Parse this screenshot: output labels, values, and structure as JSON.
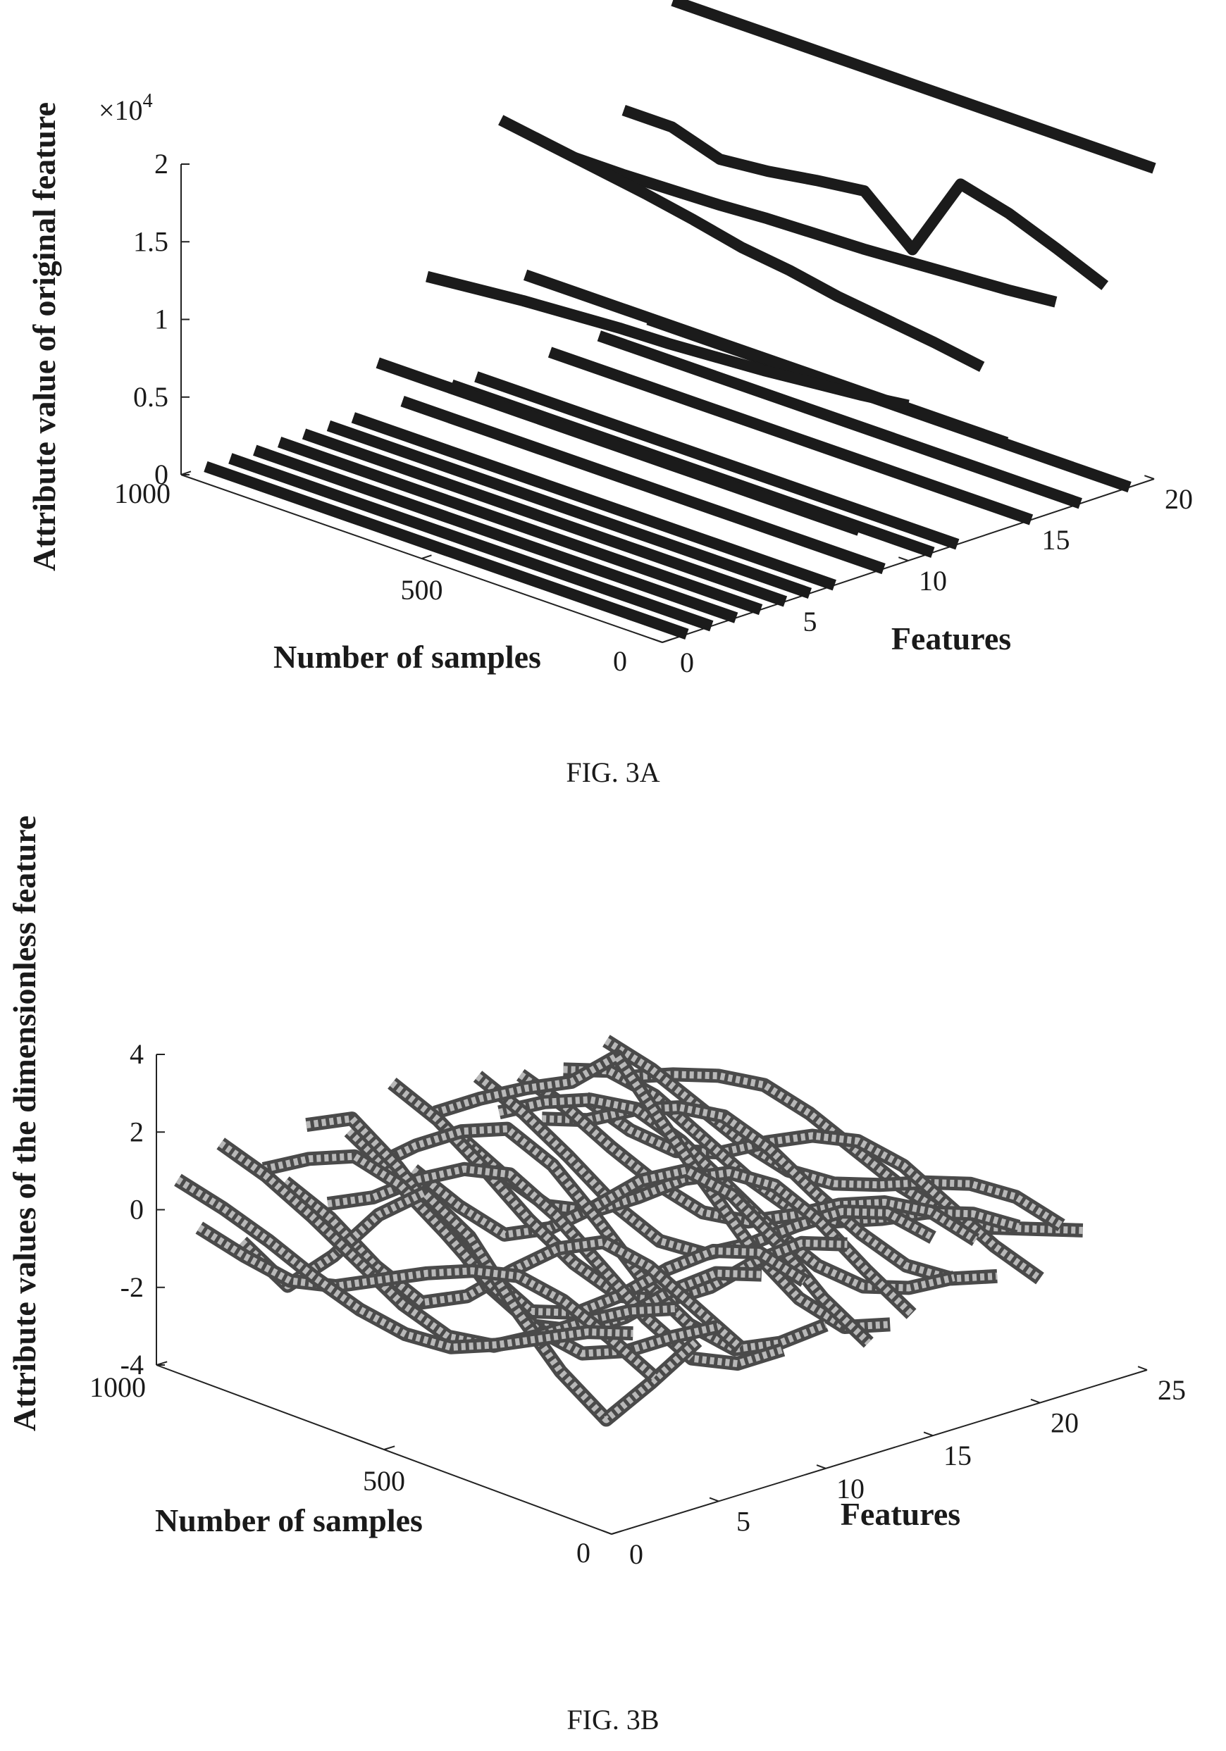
{
  "figures": [
    {
      "caption": "FIG. 3A"
    },
    {
      "caption": "FIG. 3B"
    }
  ],
  "chart_data": [
    {
      "type": "line",
      "render": "3d-ribbon",
      "title": "",
      "zlabel": "Attribute value of original feature",
      "xlabel": "Number of samples",
      "ylabel": "Features",
      "z_multiplier_label": "×10",
      "z_multiplier_exp": "4",
      "x_ticks": [
        "1000",
        "500",
        "0"
      ],
      "y_ticks": [
        "0",
        "5",
        "10",
        "15",
        "20"
      ],
      "z_ticks": [
        "0",
        "0.5",
        "1",
        "1.5",
        "2"
      ],
      "xlim": [
        0,
        1000
      ],
      "ylim": [
        0,
        20
      ],
      "zlim": [
        0,
        20000
      ],
      "series": [
        {
          "feature": 1,
          "z": [
            0,
            0,
            0,
            0,
            0,
            0,
            0,
            0,
            0,
            0,
            0
          ]
        },
        {
          "feature": 2,
          "z": [
            0,
            0,
            0,
            0,
            0,
            0,
            0,
            0,
            0,
            0,
            0
          ]
        },
        {
          "feature": 3,
          "z": [
            0,
            0,
            0,
            0,
            0,
            0,
            0,
            0,
            0,
            0,
            0
          ]
        },
        {
          "feature": 4,
          "z": [
            0,
            0,
            0,
            0,
            0,
            0,
            0,
            0,
            0,
            0,
            0
          ]
        },
        {
          "feature": 5,
          "z": [
            0,
            0,
            0,
            0,
            0,
            0,
            0,
            0,
            0,
            0,
            0
          ]
        },
        {
          "feature": 6,
          "z": [
            0,
            0,
            0,
            0,
            0,
            0,
            0,
            0,
            0,
            0,
            0
          ]
        },
        {
          "feature": 7,
          "z": [
            0,
            0,
            0,
            0,
            0,
            0,
            0,
            0,
            0,
            0,
            0
          ]
        },
        {
          "feature": 8,
          "z": [
            3000,
            3000,
            3000,
            3000,
            3000,
            3000,
            3000,
            3000,
            3000,
            3000,
            3000
          ]
        },
        {
          "feature": 9,
          "z": [
            0,
            0,
            0,
            0,
            0,
            0,
            0,
            0,
            0,
            0,
            0
          ]
        },
        {
          "feature": 10,
          "z": [
            7500,
            7800,
            8100,
            8300,
            8500,
            8600,
            8800,
            9000,
            9300,
            9600,
            10000
          ]
        },
        {
          "feature": 11,
          "z": [
            0,
            0,
            0,
            0,
            0,
            0,
            0,
            0,
            0,
            0,
            0
          ]
        },
        {
          "feature": 12,
          "z": [
            0,
            0,
            0,
            0,
            0,
            0,
            0,
            0,
            0,
            0,
            0
          ]
        },
        {
          "feature": 13,
          "z": [
            16000,
            15500,
            15000,
            14500,
            13900,
            13200,
            12800,
            12200,
            11800,
            11400,
            10900
          ]
        },
        {
          "feature": 14,
          "z": [
            5500,
            5500,
            5500,
            5500,
            5500,
            5500,
            5500,
            5500,
            5500,
            5500,
            5500
          ]
        },
        {
          "feature": 15,
          "z": [
            0,
            0,
            0,
            0,
            0,
            0,
            0,
            0,
            0,
            0,
            0
          ]
        },
        {
          "feature": 16,
          "z": [
            12000,
            12000,
            12100,
            12200,
            12400,
            12500,
            12600,
            12800,
            13000,
            13200,
            13500
          ]
        },
        {
          "feature": 17,
          "z": [
            0,
            0,
            0,
            0,
            0,
            0,
            0,
            0,
            0,
            0,
            0
          ]
        },
        {
          "feature": 18,
          "z": [
            14000,
            14000,
            13000,
            13300,
            13800,
            14200,
            11500,
            16800,
            16000,
            14800,
            13500
          ]
        },
        {
          "feature": 19,
          "z": [
            0,
            0,
            0,
            0,
            0,
            0,
            0,
            0,
            0,
            0,
            0
          ]
        },
        {
          "feature": 20,
          "z": [
            20000,
            20000,
            20000,
            20000,
            20000,
            20000,
            20000,
            20000,
            20000,
            20000,
            20000
          ]
        }
      ]
    },
    {
      "type": "line",
      "render": "3d-ribbon",
      "title": "",
      "zlabel": "Attribute values of the dimensionless feature",
      "xlabel": "Number of samples",
      "ylabel": "Features",
      "x_ticks": [
        "1000",
        "500",
        "0"
      ],
      "y_ticks": [
        "0",
        "5",
        "10",
        "15",
        "20",
        "25"
      ],
      "z_ticks": [
        "-4",
        "-2",
        "0",
        "2",
        "4"
      ],
      "xlim": [
        0,
        1000
      ],
      "ylim": [
        0,
        25
      ],
      "zlim": [
        -4,
        4
      ],
      "series": [
        {
          "feature": 1,
          "z": [
            0.6,
            0.3,
            -0.1,
            -0.6,
            -1.0,
            -1.2,
            -1.1,
            -0.6,
            0.0,
            0.6,
            1.0
          ]
        },
        {
          "feature": 2,
          "z": [
            -0.8,
            -1.1,
            -1.3,
            -1.0,
            -0.4,
            0.2,
            0.7,
            1.0,
            0.8,
            0.3,
            -0.3
          ]
        },
        {
          "feature": 3,
          "z": [
            1.2,
            0.8,
            0.2,
            -0.5,
            -1.2,
            -1.6,
            -1.4,
            -0.7,
            0.1,
            0.8,
            1.3
          ]
        },
        {
          "feature": 4,
          "z": [
            -1.5,
            -2.2,
            -1.0,
            0.5,
            1.5,
            0.8,
            -0.6,
            -1.8,
            -2.6,
            -1.2,
            0.3
          ]
        },
        {
          "feature": 5,
          "z": [
            0.2,
            0.9,
            1.4,
            1.1,
            0.3,
            -0.6,
            -1.3,
            -1.5,
            -1.0,
            -0.2,
            0.5
          ]
        },
        {
          "feature": 6,
          "z": [
            -0.3,
            -0.8,
            -1.6,
            -2.1,
            -1.5,
            -0.4,
            0.6,
            1.2,
            1.0,
            0.4,
            -0.2
          ]
        },
        {
          "feature": 7,
          "z": [
            1.0,
            1.6,
            0.8,
            -0.3,
            -1.4,
            -2.0,
            -1.7,
            -0.9,
            0.2,
            1.1,
            1.5
          ]
        },
        {
          "feature": 8,
          "z": [
            -1.2,
            -0.6,
            0.3,
            1.0,
            1.3,
            0.7,
            -0.2,
            -1.1,
            -1.7,
            -1.4,
            -0.6
          ]
        },
        {
          "feature": 9,
          "z": [
            0.5,
            -0.2,
            -1.0,
            -1.8,
            -2.4,
            -2.0,
            -1.1,
            0.0,
            0.9,
            1.3,
            1.0
          ]
        },
        {
          "feature": 10,
          "z": [
            -0.6,
            0.4,
            1.2,
            1.7,
            1.2,
            0.2,
            -0.9,
            -1.6,
            -1.8,
            -1.2,
            -0.3
          ]
        },
        {
          "feature": 11,
          "z": [
            1.4,
            0.9,
            0.1,
            -0.8,
            -1.5,
            -1.9,
            -1.6,
            -0.8,
            0.3,
            1.2,
            1.6
          ]
        },
        {
          "feature": 12,
          "z": [
            -1.0,
            -1.5,
            -1.8,
            -1.2,
            -0.2,
            0.9,
            1.6,
            1.4,
            0.6,
            -0.4,
            -1.1
          ]
        },
        {
          "feature": 13,
          "z": [
            0.3,
            1.1,
            1.8,
            2.4,
            3.5,
            2.2,
            1.0,
            -0.2,
            -1.0,
            -1.3,
            -0.8
          ]
        },
        {
          "feature": 14,
          "z": [
            -0.4,
            -1.0,
            -1.4,
            -1.1,
            -0.3,
            0.6,
            1.2,
            1.3,
            0.8,
            0.0,
            -0.7
          ]
        },
        {
          "feature": 15,
          "z": [
            0.9,
            0.4,
            -0.3,
            -1.1,
            -1.6,
            -1.5,
            -0.8,
            0.1,
            0.9,
            1.3,
            1.1
          ]
        },
        {
          "feature": 16,
          "z": [
            -0.2,
            0.5,
            1.0,
            1.2,
            0.8,
            0.1,
            -0.6,
            -1.1,
            -1.2,
            -0.8,
            -0.1
          ]
        },
        {
          "feature": 17,
          "z": [
            0.6,
            0.2,
            -0.4,
            -0.9,
            -1.2,
            -1.0,
            -0.4,
            0.3,
            0.8,
            1.0,
            0.7
          ]
        },
        {
          "feature": 18,
          "z": [
            -0.7,
            -0.3,
            0.4,
            0.9,
            1.1,
            0.7,
            0.0,
            -0.6,
            -1.0,
            -0.9,
            -0.4
          ]
        },
        {
          "feature": 19,
          "z": [
            0.4,
            0.8,
            0.6,
            0.0,
            -0.6,
            -1.0,
            -0.9,
            -0.4,
            0.2,
            0.6,
            0.7
          ]
        },
        {
          "feature": 20,
          "z": [
            -0.5,
            -0.9,
            -1.0,
            -0.6,
            0.1,
            0.7,
            1.0,
            0.8,
            0.2,
            -0.4,
            -0.8
          ]
        },
        {
          "feature": 21,
          "z": [
            0.8,
            0.5,
            0.0,
            -0.5,
            -0.8,
            -0.7,
            -0.3,
            0.2,
            0.6,
            0.7,
            0.4
          ]
        },
        {
          "feature": 22,
          "z": [
            -0.3,
            0.2,
            0.6,
            0.8,
            0.5,
            0.0,
            -0.5,
            -0.8,
            -0.7,
            -0.3,
            0.1
          ]
        }
      ]
    }
  ]
}
